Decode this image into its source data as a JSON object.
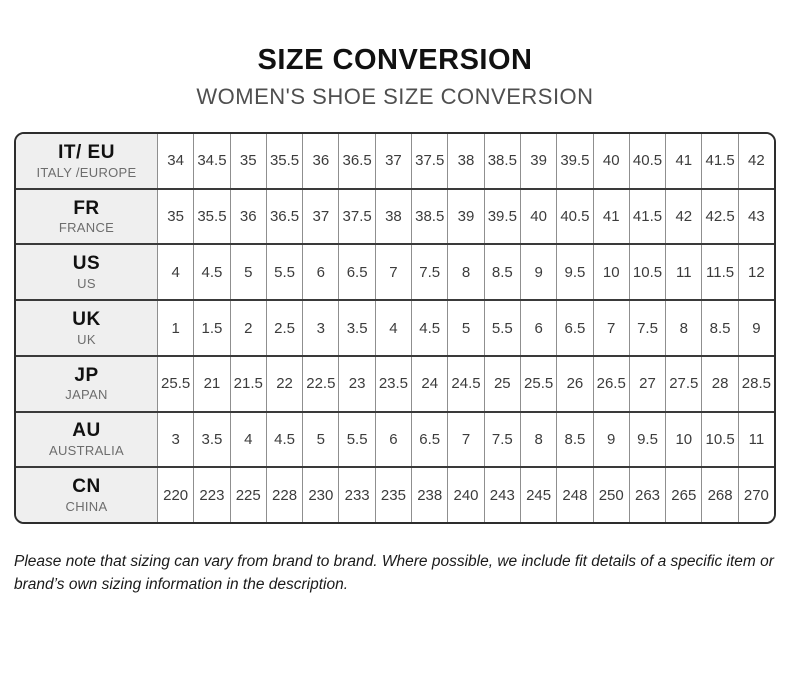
{
  "header": {
    "title": "SIZE CONVERSION",
    "subtitle": "WOMEN'S SHOE SIZE CONVERSION"
  },
  "table": {
    "rows": [
      {
        "code": "IT/ EU",
        "region": "ITALY /EUROPE",
        "sizes": [
          "34",
          "34.5",
          "35",
          "35.5",
          "36",
          "36.5",
          "37",
          "37.5",
          "38",
          "38.5",
          "39",
          "39.5",
          "40",
          "40.5",
          "41",
          "41.5",
          "42"
        ]
      },
      {
        "code": "FR",
        "region": "FRANCE",
        "sizes": [
          "35",
          "35.5",
          "36",
          "36.5",
          "37",
          "37.5",
          "38",
          "38.5",
          "39",
          "39.5",
          "40",
          "40.5",
          "41",
          "41.5",
          "42",
          "42.5",
          "43"
        ]
      },
      {
        "code": "US",
        "region": "US",
        "sizes": [
          "4",
          "4.5",
          "5",
          "5.5",
          "6",
          "6.5",
          "7",
          "7.5",
          "8",
          "8.5",
          "9",
          "9.5",
          "10",
          "10.5",
          "11",
          "11.5",
          "12"
        ]
      },
      {
        "code": "UK",
        "region": "UK",
        "sizes": [
          "1",
          "1.5",
          "2",
          "2.5",
          "3",
          "3.5",
          "4",
          "4.5",
          "5",
          "5.5",
          "6",
          "6.5",
          "7",
          "7.5",
          "8",
          "8.5",
          "9"
        ]
      },
      {
        "code": "JP",
        "region": "JAPAN",
        "sizes": [
          "25.5",
          "21",
          "21.5",
          "22",
          "22.5",
          "23",
          "23.5",
          "24",
          "24.5",
          "25",
          "25.5",
          "26",
          "26.5",
          "27",
          "27.5",
          "28",
          "28.5"
        ]
      },
      {
        "code": "AU",
        "region": "AUSTRALIA",
        "sizes": [
          "3",
          "3.5",
          "4",
          "4.5",
          "5",
          "5.5",
          "6",
          "6.5",
          "7",
          "7.5",
          "8",
          "8.5",
          "9",
          "9.5",
          "10",
          "10.5",
          "11"
        ]
      },
      {
        "code": "CN",
        "region": "CHINA",
        "sizes": [
          "220",
          "223",
          "225",
          "228",
          "230",
          "233",
          "235",
          "238",
          "240",
          "243",
          "245",
          "248",
          "250",
          "263",
          "265",
          "268",
          "270"
        ]
      }
    ]
  },
  "footer": {
    "note": "Please note that sizing can vary from brand to brand. Where possible, we include fit details of a specific item or brand’s own sizing information in the description."
  },
  "colors": {
    "header_col_bg": "#efefef",
    "outer_border": "#2d2d2d",
    "row_divider": "#3a3a3a",
    "cell_divider": "#8f8f8f",
    "title_text": "#111111",
    "subtitle_text": "#4f4f4f",
    "cell_text": "#3c3c3c",
    "region_text": "#6d6d6d"
  }
}
